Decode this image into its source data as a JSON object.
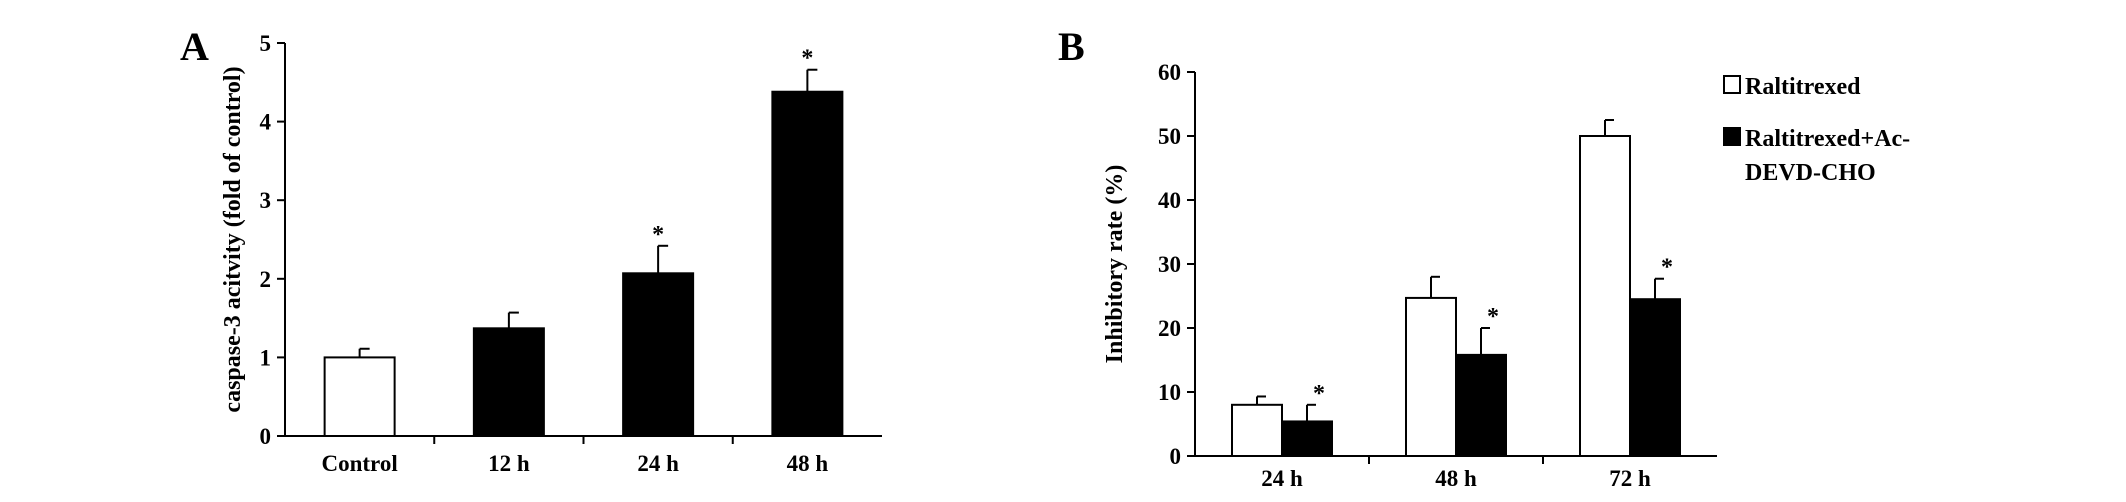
{
  "panels": {
    "a": {
      "letter": "A"
    },
    "b": {
      "letter": "B"
    }
  },
  "legend": {
    "items": [
      {
        "label_lines": [
          "Raltitrexed"
        ],
        "color": "#ffffff"
      },
      {
        "label_lines": [
          "Raltitrexed+Ac-",
          "DEVD-CHO"
        ],
        "color": "#000000"
      }
    ]
  },
  "chart_data": [
    {
      "type": "bar",
      "panel": "A",
      "categories": [
        "Control",
        "12 h",
        "24 h",
        "48 h"
      ],
      "values": [
        1.0,
        1.37,
        2.07,
        4.38
      ],
      "errors": [
        0.11,
        0.2,
        0.35,
        0.28
      ],
      "bar_colors": [
        "#ffffff",
        "#000000",
        "#000000",
        "#000000"
      ],
      "significance": [
        "",
        "",
        "*",
        "*"
      ],
      "ylabel": "caspase-3 acitvity (fold of control)",
      "xlabel": "",
      "ylim": [
        0,
        5
      ],
      "yticks": [
        0,
        1,
        2,
        3,
        4,
        5
      ]
    },
    {
      "type": "bar",
      "panel": "B",
      "categories": [
        "24 h",
        "48 h",
        "72 h"
      ],
      "series": [
        {
          "name": "Raltitrexed",
          "color": "#ffffff",
          "values": [
            8.0,
            24.7,
            50.0
          ],
          "errors": [
            1.3,
            3.3,
            2.5
          ],
          "significance": [
            "",
            "",
            ""
          ]
        },
        {
          "name": "Raltitrexed+Ac-DEVD-CHO",
          "color": "#000000",
          "values": [
            5.4,
            15.8,
            24.5
          ],
          "errors": [
            2.6,
            4.2,
            3.2
          ],
          "significance": [
            "*",
            "*",
            "*"
          ]
        }
      ],
      "ylabel": "Inhibitory rate (%)",
      "xlabel": "",
      "ylim": [
        0,
        60
      ],
      "yticks": [
        0,
        10,
        20,
        30,
        40,
        50,
        60
      ],
      "legend_position": "right"
    }
  ]
}
